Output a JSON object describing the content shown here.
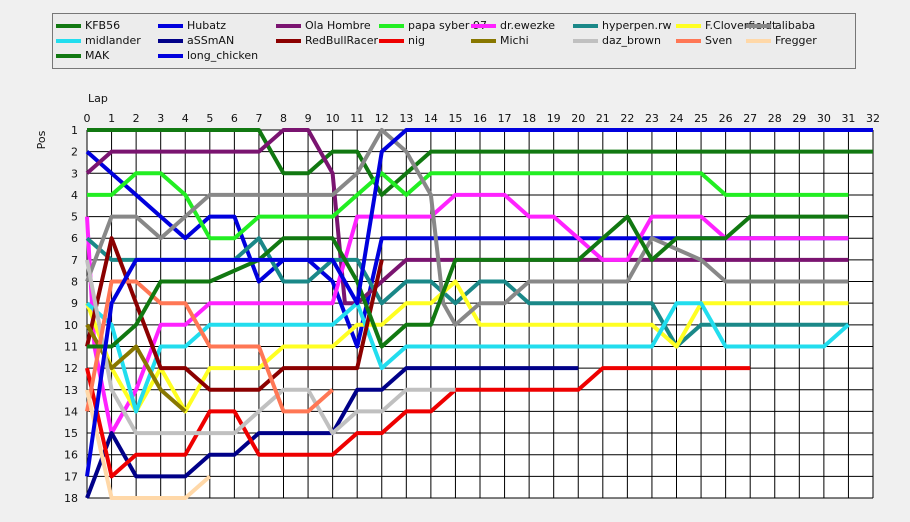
{
  "chart_data": {
    "type": "line",
    "xlabel": "Lap",
    "ylabel": "Pos",
    "xlim": [
      0,
      32
    ],
    "ylim": [
      1,
      18
    ],
    "y_inverted": true,
    "grid": true,
    "legend_position": "top",
    "x_ticks": [
      "0",
      "1",
      "2",
      "3",
      "4",
      "5",
      "6",
      "7",
      "8",
      "9",
      "10",
      "11",
      "12",
      "13",
      "14",
      "15",
      "16",
      "17",
      "18",
      "19",
      "20",
      "21",
      "22",
      "23",
      "24",
      "25",
      "26",
      "27",
      "28",
      "29",
      "30",
      "31",
      "32"
    ],
    "y_ticks": [
      "1",
      "2",
      "3",
      "4",
      "5",
      "6",
      "7",
      "8",
      "9",
      "10",
      "11",
      "12",
      "13",
      "14",
      "15",
      "16",
      "17",
      "18"
    ],
    "series": [
      {
        "name": "KFB56",
        "color": "#117811",
        "x": [
          0,
          7,
          8,
          9,
          10,
          11,
          12,
          13,
          14,
          32
        ],
        "y": [
          1,
          1,
          3,
          3,
          2,
          2,
          4,
          3,
          2,
          2
        ]
      },
      {
        "name": "Hubatz",
        "color": "#0000dd",
        "x": [
          0,
          2,
          3,
          4,
          5,
          6,
          7,
          8,
          9,
          10,
          11,
          12,
          13,
          31
        ],
        "y": [
          2,
          4,
          5,
          6,
          5,
          5,
          8,
          7,
          7,
          8,
          11,
          6,
          6,
          6
        ]
      },
      {
        "name": "Ola Hombre",
        "color": "#7a1470",
        "x": [
          0,
          1,
          7,
          8,
          9,
          10,
          10.5,
          11,
          12,
          13,
          14,
          31
        ],
        "y": [
          3,
          2,
          2,
          1,
          1,
          3,
          9,
          9,
          8,
          7,
          7,
          7
        ]
      },
      {
        "name": "papa syber 97",
        "color": "#22ee22",
        "x": [
          0,
          1,
          2,
          3,
          4,
          5,
          6,
          7,
          8,
          10,
          11,
          12,
          13,
          14,
          25,
          26,
          31
        ],
        "y": [
          4,
          4,
          3,
          3,
          4,
          6,
          6,
          5,
          5,
          5,
          4,
          3,
          4,
          3,
          3,
          4,
          4
        ]
      },
      {
        "name": "dr.ewezke",
        "color": "#ff22ff",
        "x": [
          0,
          0.3,
          1,
          2,
          3,
          4,
          5,
          10,
          11,
          14,
          15,
          17,
          18,
          19,
          20,
          21,
          22,
          23,
          25,
          26,
          31
        ],
        "y": [
          5,
          11,
          15,
          13,
          10,
          10,
          9,
          9,
          5,
          5,
          4,
          4,
          5,
          5,
          6,
          7,
          7,
          5,
          5,
          6,
          6
        ]
      },
      {
        "name": "hyperpen.rw",
        "color": "#1a8888",
        "x": [
          0,
          1,
          5,
          6,
          7,
          8,
          9,
          10,
          11,
          12,
          13,
          14,
          15,
          16,
          17,
          18,
          23,
          24,
          25,
          31
        ],
        "y": [
          6,
          7,
          7,
          7,
          6,
          8,
          8,
          7,
          7,
          9,
          8,
          8,
          9,
          8,
          8,
          9,
          9,
          11,
          10,
          10
        ]
      },
      {
        "name": "F.Cloverfieldt",
        "color": "#ffff22",
        "x": [
          0,
          1,
          2,
          3,
          4,
          5,
          7,
          8,
          10,
          11,
          12,
          13,
          14,
          15,
          16,
          23,
          24,
          25,
          31
        ],
        "y": [
          9,
          12,
          14,
          12,
          14,
          12,
          12,
          11,
          11,
          10,
          10,
          9,
          9,
          8,
          10,
          10,
          11,
          9,
          9
        ]
      },
      {
        "name": "alibaba",
        "color": "#888888",
        "x": [
          0,
          1,
          2,
          3,
          5,
          6,
          7,
          8,
          9,
          10,
          11,
          12,
          13,
          14,
          14.5,
          15,
          16,
          17,
          18,
          22,
          23,
          25,
          26,
          31
        ],
        "y": [
          8,
          5,
          5,
          6,
          4,
          4,
          4,
          4,
          4,
          4,
          3,
          1,
          2,
          4,
          9,
          10,
          9,
          9,
          8,
          8,
          6,
          7,
          8,
          8
        ]
      },
      {
        "name": "midlander",
        "color": "#22ddee",
        "x": [
          0,
          1,
          2,
          3,
          4,
          5,
          10,
          11,
          12,
          13,
          23,
          24,
          25,
          26,
          30,
          31
        ],
        "y": [
          9,
          10,
          14,
          11,
          11,
          10,
          10,
          9,
          12,
          11,
          11,
          9,
          9,
          11,
          11,
          10
        ]
      },
      {
        "name": "aSSmAN",
        "color": "#000088",
        "x": [
          0,
          1,
          2,
          3,
          4,
          5,
          6,
          7,
          10,
          11,
          12,
          13,
          20
        ],
        "y": [
          18,
          15,
          17,
          17,
          17,
          16,
          16,
          15,
          15,
          13,
          13,
          12,
          12
        ]
      },
      {
        "name": "RedBullRacer",
        "color": "#8b0000",
        "x": [
          0,
          1,
          2,
          3,
          4,
          5,
          6,
          7,
          8,
          9,
          10,
          11,
          12
        ],
        "y": [
          11,
          6,
          9,
          12,
          12,
          13,
          13,
          13,
          12,
          12,
          12,
          12,
          7
        ]
      },
      {
        "name": "nig",
        "color": "#ee0000",
        "x": [
          0,
          1,
          2,
          3,
          4,
          5,
          6,
          7,
          10,
          11,
          12,
          13,
          14,
          15,
          16,
          17,
          20,
          21,
          22,
          27
        ],
        "y": [
          12,
          17,
          16,
          16,
          16,
          14,
          14,
          16,
          16,
          15,
          15,
          14,
          14,
          13,
          13,
          13,
          13,
          12,
          12,
          12
        ]
      },
      {
        "name": "Michi",
        "color": "#887700",
        "x": [
          0,
          1,
          2,
          3,
          4
        ],
        "y": [
          10,
          12,
          11,
          13,
          14
        ]
      },
      {
        "name": "daz_brown",
        "color": "#c0c0c0",
        "x": [
          0,
          1,
          2,
          3,
          6,
          7,
          8,
          9,
          10,
          11,
          12,
          13,
          15
        ],
        "y": [
          7,
          13,
          15,
          15,
          15,
          14,
          13,
          13,
          15,
          14,
          14,
          13,
          13
        ]
      },
      {
        "name": "Sven",
        "color": "#ff7755",
        "x": [
          0,
          1,
          2,
          3,
          4,
          5,
          6,
          7,
          8,
          9,
          10
        ],
        "y": [
          14,
          8,
          8,
          9,
          9,
          11,
          11,
          11,
          14,
          14,
          13
        ]
      },
      {
        "name": "Fregger",
        "color": "#ffd8a8",
        "x": [
          0,
          1,
          4,
          5
        ],
        "y": [
          13,
          18,
          18,
          17
        ]
      },
      {
        "name": "MAK",
        "color": "#117811",
        "x": [
          0,
          1,
          2,
          3,
          5,
          7,
          8,
          10,
          11,
          12,
          13,
          14,
          15,
          20,
          21,
          22,
          23,
          24,
          26,
          27,
          31
        ],
        "y": [
          11,
          11,
          10,
          8,
          8,
          7,
          6,
          6,
          8,
          11,
          10,
          10,
          7,
          7,
          6,
          5,
          7,
          6,
          6,
          5,
          5
        ]
      },
      {
        "name": "long_chicken",
        "color": "#0000dd",
        "x": [
          0,
          1,
          2,
          10,
          11,
          12,
          13,
          32
        ],
        "y": [
          17,
          9,
          7,
          7,
          9,
          2,
          1,
          1
        ]
      }
    ]
  }
}
